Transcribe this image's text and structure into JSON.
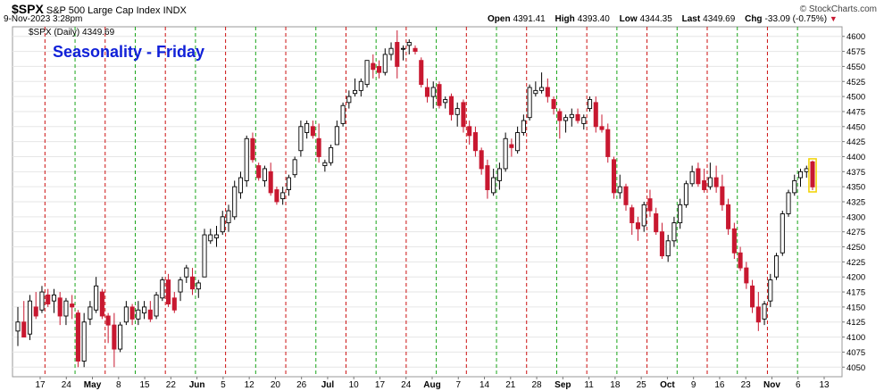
{
  "header": {
    "symbol": "$SPX",
    "description": "S&P 500 Large Cap Index",
    "exchange": "INDX",
    "datetime": "9-Nov-2023 3:28pm",
    "watermark": "© StockCharts.com",
    "open_label": "Open",
    "open": "4391.41",
    "high_label": "High",
    "high": "4393.40",
    "low_label": "Low",
    "low": "4344.35",
    "last_label": "Last",
    "last": "4349.69",
    "chg_label": "Chg",
    "chg": "-33.09 (-0.75%)",
    "down_triangle": "▼"
  },
  "chart_data": {
    "type": "candlestick",
    "title": "Seasonality - Friday",
    "legend": "$SPX (Daily) 4349.69",
    "colors": {
      "up": "#ffffff",
      "up_outline": "#000000",
      "down": "#c81830",
      "bull_vertical": "#19a519",
      "bear_vertical": "#cc1111",
      "title": "#1020d8",
      "grid": "#e6e6e6"
    },
    "ylim": [
      4040,
      4610
    ],
    "y_ticks": [
      4050,
      4075,
      4100,
      4125,
      4150,
      4175,
      4200,
      4225,
      4250,
      4275,
      4300,
      4325,
      4350,
      4375,
      4400,
      4425,
      4450,
      4475,
      4500,
      4525,
      4550,
      4575,
      4600
    ],
    "x_labels": [
      "17",
      "24",
      "May",
      "8",
      "15",
      "22",
      "Jun",
      "5",
      "12",
      "20",
      "26",
      "Jul",
      "10",
      "17",
      "24",
      "Aug",
      "7",
      "14",
      "21",
      "28",
      "Sep",
      "11",
      "18",
      "25",
      "Oct",
      "9",
      "16",
      "23",
      "Nov",
      "6",
      "13"
    ],
    "friday_verticals": "alternating green/red dashed lines at each Friday",
    "candles": [
      [
        4110,
        4150,
        4085,
        4125
      ],
      [
        4125,
        4160,
        4100,
        4100
      ],
      [
        4105,
        4170,
        4095,
        4160
      ],
      [
        4150,
        4175,
        4130,
        4135
      ],
      [
        4145,
        4185,
        4140,
        4175
      ],
      [
        4170,
        4180,
        4150,
        4155
      ],
      [
        4160,
        4180,
        4140,
        4170
      ],
      [
        4165,
        4175,
        4120,
        4135
      ],
      [
        4135,
        4165,
        4120,
        4160
      ],
      [
        4155,
        4170,
        4130,
        4150
      ],
      [
        4140,
        4145,
        4050,
        4060
      ],
      [
        4060,
        4140,
        4050,
        4125
      ],
      [
        4130,
        4160,
        4120,
        4150
      ],
      [
        4145,
        4200,
        4140,
        4185
      ],
      [
        4175,
        4180,
        4130,
        4135
      ],
      [
        4135,
        4140,
        4090,
        4120
      ],
      [
        4120,
        4140,
        4050,
        4080
      ],
      [
        4080,
        4125,
        4075,
        4120
      ],
      [
        4125,
        4160,
        4120,
        4150
      ],
      [
        4150,
        4155,
        4120,
        4130
      ],
      [
        4130,
        4160,
        4120,
        4145
      ],
      [
        4140,
        4160,
        4130,
        4150
      ],
      [
        4145,
        4160,
        4125,
        4130
      ],
      [
        4135,
        4175,
        4130,
        4170
      ],
      [
        4165,
        4200,
        4160,
        4195
      ],
      [
        4195,
        4205,
        4150,
        4155
      ],
      [
        4165,
        4175,
        4140,
        4145
      ],
      [
        4175,
        4200,
        4160,
        4195
      ],
      [
        4200,
        4220,
        4190,
        4215
      ],
      [
        4200,
        4215,
        4170,
        4180
      ],
      [
        4180,
        4195,
        4165,
        4190
      ],
      [
        4200,
        4280,
        4200,
        4270
      ],
      [
        4260,
        4280,
        4255,
        4270
      ],
      [
        4265,
        4285,
        4250,
        4270
      ],
      [
        4275,
        4310,
        4270,
        4300
      ],
      [
        4290,
        4320,
        4275,
        4310
      ],
      [
        4300,
        4360,
        4295,
        4350
      ],
      [
        4340,
        4375,
        4330,
        4365
      ],
      [
        4360,
        4435,
        4350,
        4430
      ],
      [
        4430,
        4440,
        4390,
        4395
      ],
      [
        4385,
        4390,
        4360,
        4365
      ],
      [
        4360,
        4385,
        4350,
        4380
      ],
      [
        4375,
        4390,
        4335,
        4340
      ],
      [
        4345,
        4350,
        4320,
        4325
      ],
      [
        4330,
        4350,
        4320,
        4340
      ],
      [
        4345,
        4370,
        4335,
        4365
      ],
      [
        4370,
        4400,
        4365,
        4395
      ],
      [
        4410,
        4460,
        4400,
        4450
      ],
      [
        4440,
        4460,
        4430,
        4455
      ],
      [
        4450,
        4460,
        4430,
        4435
      ],
      [
        4430,
        4455,
        4390,
        4400
      ],
      [
        4385,
        4395,
        4375,
        4390
      ],
      [
        4390,
        4420,
        4385,
        4415
      ],
      [
        4420,
        4460,
        4420,
        4450
      ],
      [
        4455,
        4490,
        4450,
        4485
      ],
      [
        4490,
        4510,
        4480,
        4500
      ],
      [
        4505,
        4530,
        4500,
        4510
      ],
      [
        4510,
        4530,
        4500,
        4525
      ],
      [
        4520,
        4560,
        4515,
        4560
      ],
      [
        4555,
        4570,
        4530,
        4545
      ],
      [
        4550,
        4560,
        4530,
        4540
      ],
      [
        4540,
        4580,
        4535,
        4570
      ],
      [
        4570,
        4590,
        4560,
        4580
      ],
      [
        4590,
        4610,
        4530,
        4550
      ],
      [
        4580,
        4585,
        4560,
        4580
      ],
      [
        4585,
        4595,
        4570,
        4590
      ],
      [
        4580,
        4585,
        4570,
        4575
      ],
      [
        4560,
        4565,
        4515,
        4520
      ],
      [
        4515,
        4530,
        4490,
        4500
      ],
      [
        4500,
        4525,
        4480,
        4515
      ],
      [
        4520,
        4525,
        4480,
        4485
      ],
      [
        4490,
        4500,
        4480,
        4495
      ],
      [
        4500,
        4505,
        4460,
        4470
      ],
      [
        4470,
        4490,
        4450,
        4480
      ],
      [
        4490,
        4495,
        4440,
        4450
      ],
      [
        4450,
        4460,
        4420,
        4435
      ],
      [
        4440,
        4450,
        4400,
        4410
      ],
      [
        4410,
        4415,
        4370,
        4380
      ],
      [
        4385,
        4395,
        4330,
        4345
      ],
      [
        4340,
        4380,
        4335,
        4365
      ],
      [
        4360,
        4390,
        4345,
        4380
      ],
      [
        4380,
        4440,
        4375,
        4430
      ],
      [
        4420,
        4430,
        4400,
        4415
      ],
      [
        4410,
        4450,
        4405,
        4440
      ],
      [
        4440,
        4470,
        4435,
        4460
      ],
      [
        4465,
        4520,
        4460,
        4515
      ],
      [
        4505,
        4525,
        4500,
        4510
      ],
      [
        4510,
        4540,
        4505,
        4515
      ],
      [
        4515,
        4530,
        4490,
        4500
      ],
      [
        4495,
        4500,
        4470,
        4480
      ],
      [
        4475,
        4480,
        4430,
        4460
      ],
      [
        4460,
        4470,
        4440,
        4465
      ],
      [
        4465,
        4480,
        4450,
        4470
      ],
      [
        4470,
        4480,
        4455,
        4460
      ],
      [
        4455,
        4470,
        4445,
        4465
      ],
      [
        4480,
        4500,
        4475,
        4495
      ],
      [
        4490,
        4500,
        4440,
        4450
      ],
      [
        4450,
        4470,
        4440,
        4445
      ],
      [
        4445,
        4455,
        4390,
        4400
      ],
      [
        4395,
        4400,
        4330,
        4340
      ],
      [
        4340,
        4370,
        4330,
        4350
      ],
      [
        4350,
        4355,
        4310,
        4320
      ],
      [
        4315,
        4320,
        4270,
        4290
      ],
      [
        4290,
        4300,
        4260,
        4280
      ],
      [
        4285,
        4325,
        4275,
        4320
      ],
      [
        4330,
        4345,
        4300,
        4310
      ],
      [
        4305,
        4315,
        4270,
        4275
      ],
      [
        4275,
        4290,
        4230,
        4235
      ],
      [
        4235,
        4270,
        4225,
        4260
      ],
      [
        4260,
        4300,
        4250,
        4290
      ],
      [
        4290,
        4330,
        4280,
        4320
      ],
      [
        4320,
        4360,
        4315,
        4355
      ],
      [
        4355,
        4385,
        4350,
        4375
      ],
      [
        4380,
        4390,
        4350,
        4355
      ],
      [
        4360,
        4380,
        4340,
        4345
      ],
      [
        4350,
        4390,
        4345,
        4365
      ],
      [
        4365,
        4385,
        4340,
        4350
      ],
      [
        4350,
        4370,
        4310,
        4320
      ],
      [
        4320,
        4330,
        4270,
        4280
      ],
      [
        4280,
        4290,
        4230,
        4240
      ],
      [
        4240,
        4250,
        4210,
        4215
      ],
      [
        4215,
        4225,
        4180,
        4190
      ],
      [
        4185,
        4195,
        4140,
        4150
      ],
      [
        4150,
        4175,
        4110,
        4125
      ],
      [
        4130,
        4160,
        4120,
        4155
      ],
      [
        4160,
        4205,
        4150,
        4195
      ],
      [
        4200,
        4240,
        4195,
        4235
      ],
      [
        4240,
        4310,
        4235,
        4305
      ],
      [
        4305,
        4345,
        4300,
        4340
      ],
      [
        4340,
        4370,
        4335,
        4360
      ],
      [
        4365,
        4380,
        4350,
        4375
      ],
      [
        4375,
        4385,
        4365,
        4380
      ],
      [
        4391.41,
        4393.4,
        4344.35,
        4349.69
      ]
    ]
  }
}
